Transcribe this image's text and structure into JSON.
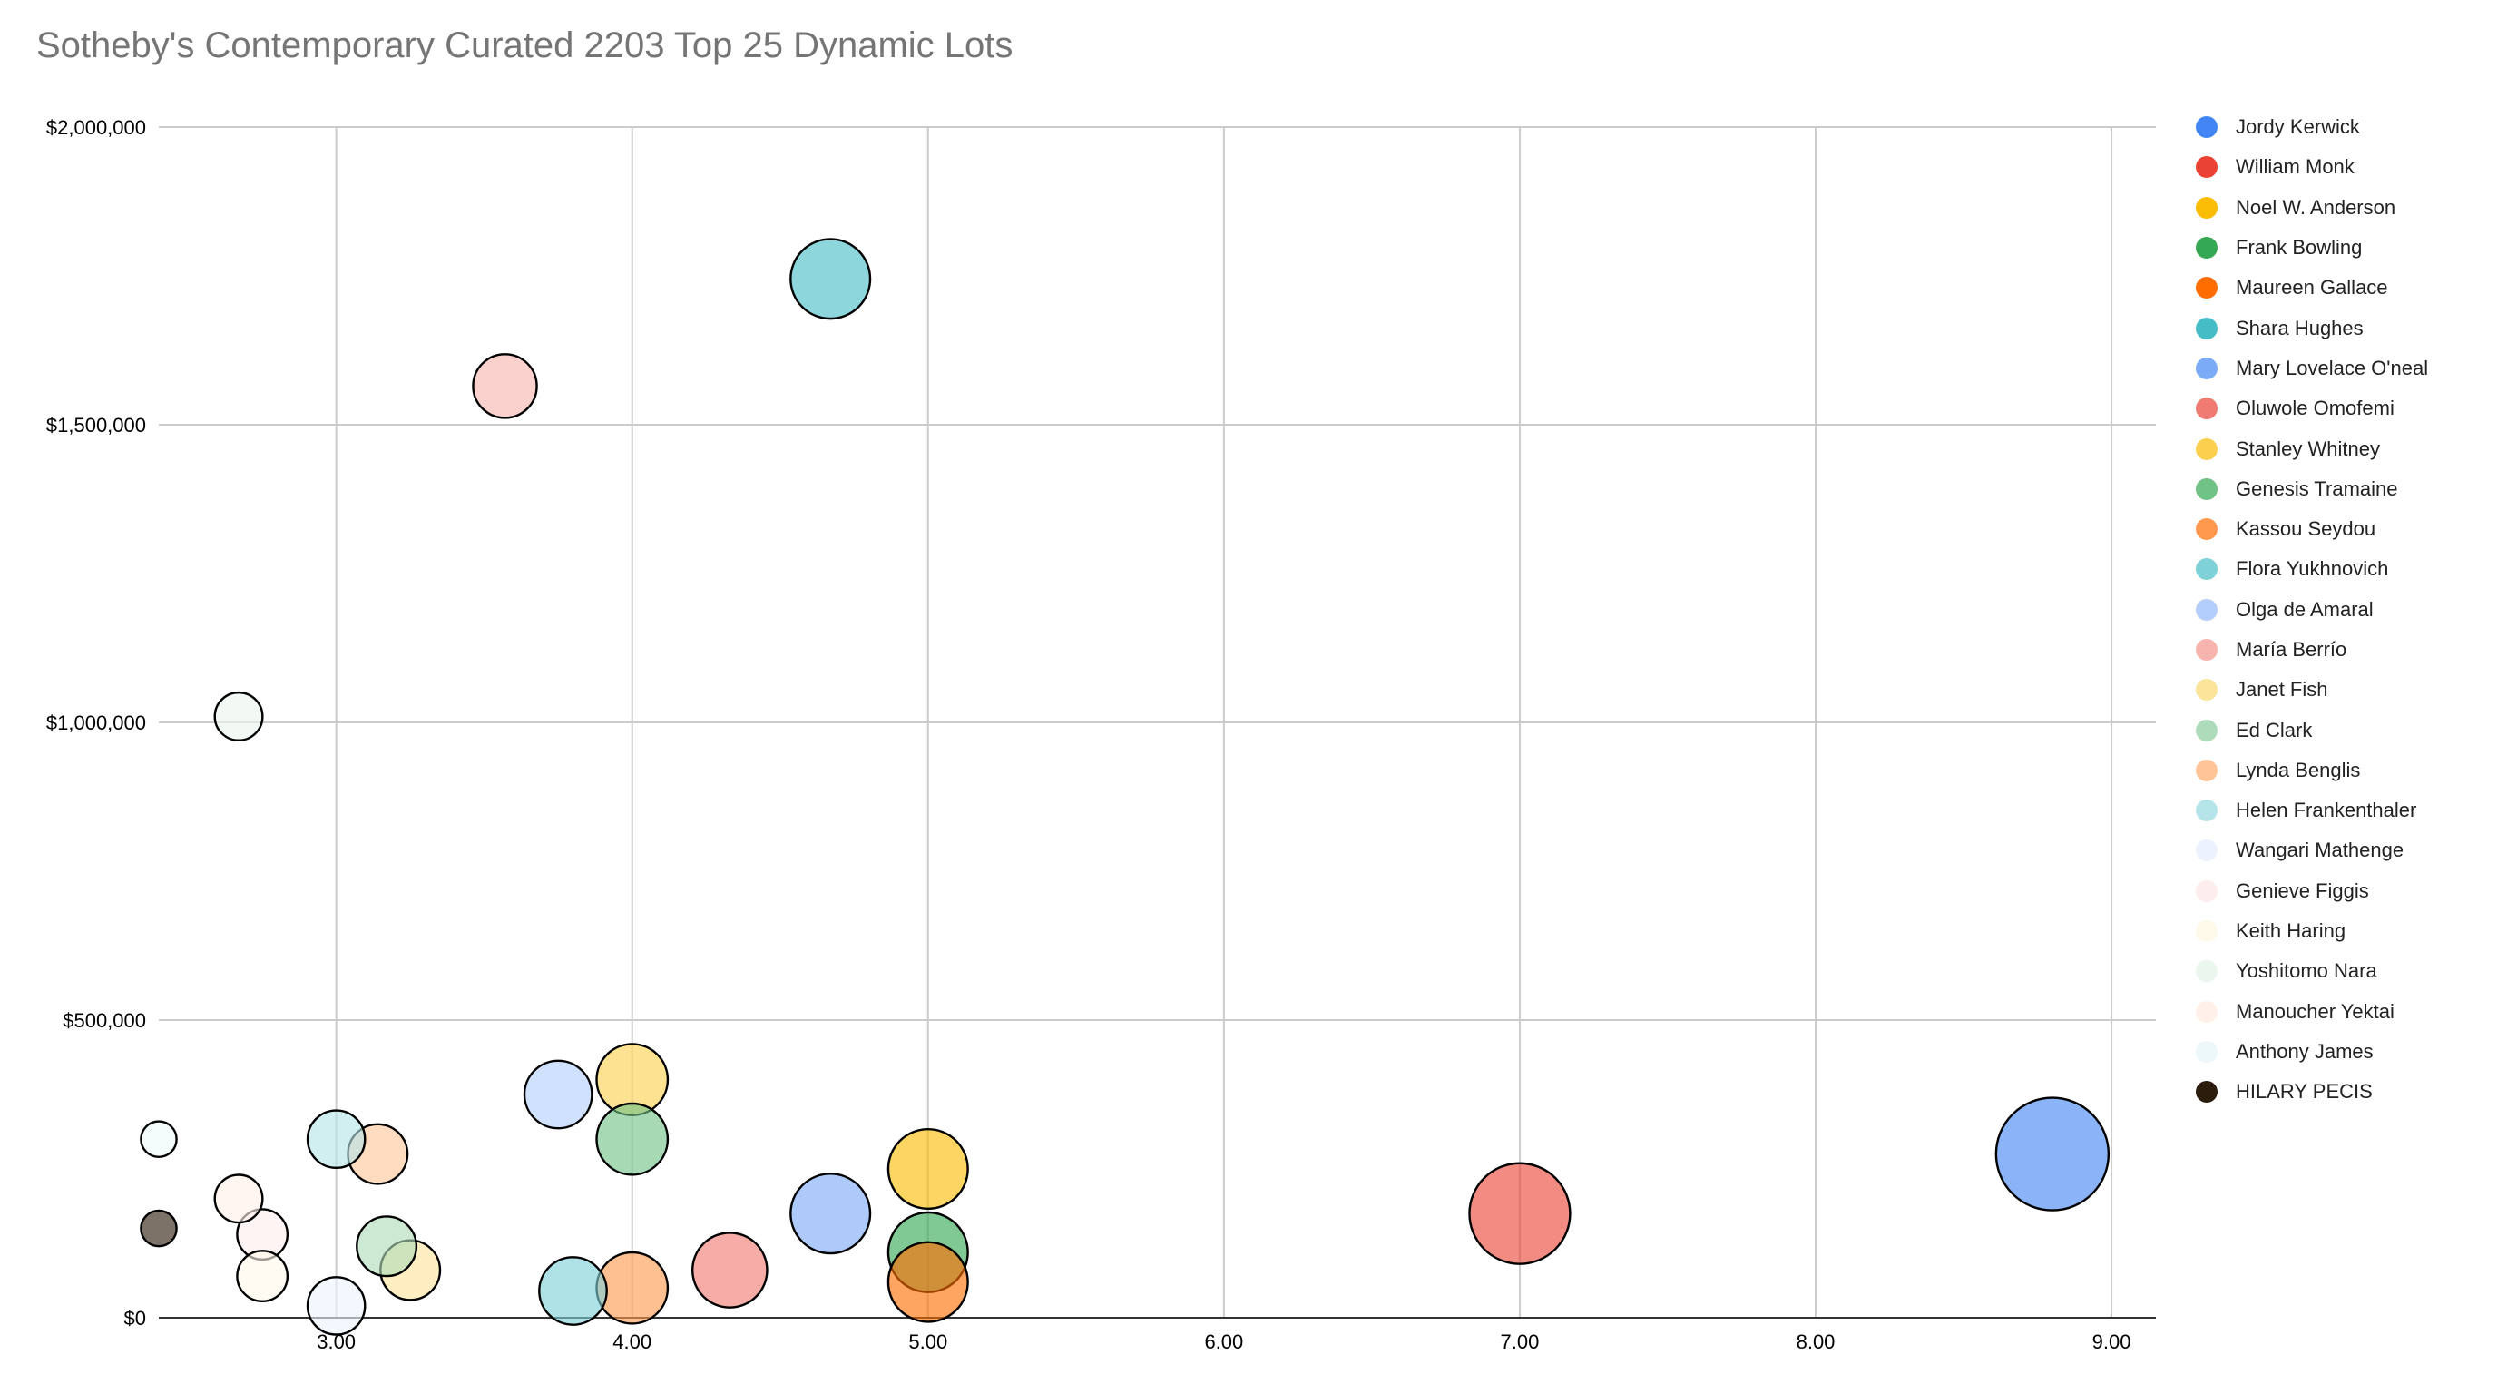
{
  "chart_data": {
    "type": "bubble",
    "title": "Sotheby's Contemporary Curated 2203 Top 25 Dynamic Lots",
    "xlabel": "",
    "ylabel": "",
    "xlim": [
      2.4,
      9.15
    ],
    "ylim": [
      0,
      2000000
    ],
    "x_ticks": [
      3,
      4,
      5,
      6,
      7,
      8,
      9
    ],
    "x_tick_labels": [
      "3.00",
      "4.00",
      "5.00",
      "6.00",
      "7.00",
      "8.00",
      "9.00"
    ],
    "y_ticks": [
      0,
      500000,
      1000000,
      1500000,
      2000000
    ],
    "y_tick_labels": [
      "$0",
      "$500,000",
      "$1,000,000",
      "$1,500,000",
      "$2,000,000"
    ],
    "grid": true,
    "legend_position": "right",
    "series": [
      {
        "name": "Jordy Kerwick",
        "color": "#4285f4",
        "x": 8.8,
        "y": 275000,
        "size": 100
      },
      {
        "name": "William Monk",
        "color": "#ea4335",
        "x": 7.0,
        "y": 175000,
        "size": 80
      },
      {
        "name": "Noel W. Anderson",
        "color": "#fbbc04",
        "x": 5.0,
        "y": 250000,
        "size": 50
      },
      {
        "name": "Frank Bowling",
        "color": "#34a853",
        "x": 5.0,
        "y": 110000,
        "size": 50
      },
      {
        "name": "Maureen Gallace",
        "color": "#ff6d01",
        "x": 5.0,
        "y": 60000,
        "size": 50
      },
      {
        "name": "Shara Hughes",
        "color": "#46bdc6",
        "x": 4.67,
        "y": 1745000,
        "size": 50
      },
      {
        "name": "Mary Lovelace O'neal",
        "color": "#7baaf7",
        "x": 4.67,
        "y": 175000,
        "size": 50
      },
      {
        "name": "Oluwole Omofemi",
        "color": "#f07b72",
        "x": 4.33,
        "y": 80000,
        "size": 44
      },
      {
        "name": "Stanley Whitney",
        "color": "#fcd04f",
        "x": 4.0,
        "y": 400000,
        "size": 40
      },
      {
        "name": "Genesis Tramaine",
        "color": "#71c287",
        "x": 4.0,
        "y": 300000,
        "size": 40
      },
      {
        "name": "Kassou Seydou",
        "color": "#ff994d",
        "x": 4.0,
        "y": 50000,
        "size": 40
      },
      {
        "name": "Flora Yukhnovich",
        "color": "#7ed1d7",
        "x": 3.8,
        "y": 45000,
        "size": 36
      },
      {
        "name": "Olga de Amaral",
        "color": "#b3cefb",
        "x": 3.75,
        "y": 375000,
        "size": 36
      },
      {
        "name": "María Berrío",
        "color": "#f7b4ae",
        "x": 3.57,
        "y": 1565000,
        "size": 32
      },
      {
        "name": "Janet Fish",
        "color": "#fde49b",
        "x": 3.25,
        "y": 80000,
        "size": 28
      },
      {
        "name": "Ed Clark",
        "color": "#aedcba",
        "x": 3.17,
        "y": 120000,
        "size": 28
      },
      {
        "name": "Lynda Benglis",
        "color": "#ffc599",
        "x": 3.14,
        "y": 275000,
        "size": 28
      },
      {
        "name": "Helen Frankenthaler",
        "color": "#b5e5e8",
        "x": 3.0,
        "y": 300000,
        "size": 26
      },
      {
        "name": "Wangari Mathenge",
        "color": "#ecf3fe",
        "x": 3.0,
        "y": 20000,
        "size": 26
      },
      {
        "name": "Genieve Figgis",
        "color": "#fdeeed",
        "x": 2.75,
        "y": 140000,
        "size": 20
      },
      {
        "name": "Keith Haring",
        "color": "#fff9ea",
        "x": 2.75,
        "y": 70000,
        "size": 20
      },
      {
        "name": "Yoshitomo Nara",
        "color": "#eaf6ee",
        "x": 2.67,
        "y": 1010000,
        "size": 18
      },
      {
        "name": "Manoucher Yektai",
        "color": "#fff1ea",
        "x": 2.67,
        "y": 200000,
        "size": 18
      },
      {
        "name": "Anthony James",
        "color": "#ecf8f9",
        "x": 2.4,
        "y": 300000,
        "size": 10
      },
      {
        "name": "HILARY PECIS",
        "color": "#2b1c0c",
        "x": 2.4,
        "y": 150000,
        "size": 10
      }
    ]
  }
}
